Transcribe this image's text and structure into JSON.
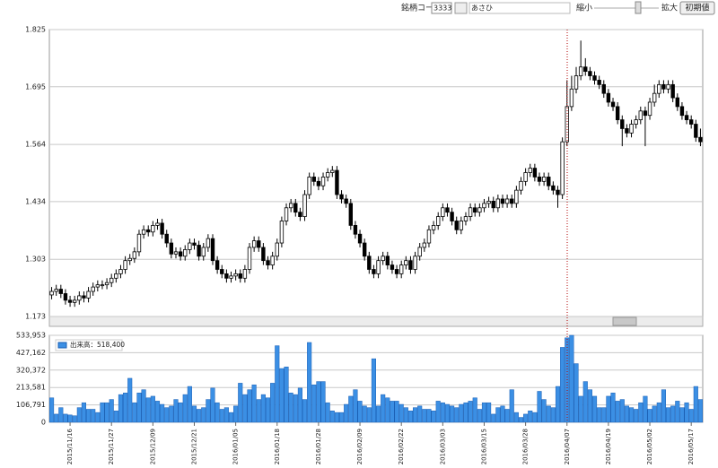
{
  "toolbar": {
    "code_label": "銘柄コード:",
    "code": "3333",
    "name": "あさひ",
    "zoom_out": "縮小",
    "zoom_in": "拡大",
    "reset": "初期値"
  },
  "chart_data": [
    {
      "type": "candlestick",
      "ylim": [
        1.173,
        1.825
      ],
      "yticks": [
        1.173,
        1.303,
        1.434,
        1.564,
        1.695,
        1.825
      ],
      "grid": true,
      "up_color": "#ffffff",
      "down_color": "#000000",
      "open": [
        1.222,
        1.23,
        1.235,
        1.225,
        1.21,
        1.205,
        1.21,
        1.22,
        1.215,
        1.23,
        1.24,
        1.245,
        1.245,
        1.25,
        1.26,
        1.27,
        1.28,
        1.3,
        1.305,
        1.32,
        1.36,
        1.37,
        1.365,
        1.38,
        1.385,
        1.36,
        1.34,
        1.315,
        1.32,
        1.31,
        1.325,
        1.34,
        1.335,
        1.31,
        1.33,
        1.35,
        1.3,
        1.28,
        1.27,
        1.26,
        1.265,
        1.27,
        1.26,
        1.28,
        1.33,
        1.345,
        1.33,
        1.3,
        1.29,
        1.31,
        1.34,
        1.39,
        1.42,
        1.43,
        1.41,
        1.4,
        1.45,
        1.49,
        1.48,
        1.47,
        1.49,
        1.5,
        1.505,
        1.45,
        1.44,
        1.43,
        1.38,
        1.36,
        1.34,
        1.31,
        1.28,
        1.27,
        1.3,
        1.31,
        1.29,
        1.28,
        1.27,
        1.29,
        1.3,
        1.28,
        1.31,
        1.33,
        1.34,
        1.37,
        1.38,
        1.4,
        1.42,
        1.41,
        1.39,
        1.37,
        1.39,
        1.4,
        1.42,
        1.41,
        1.42,
        1.43,
        1.435,
        1.42,
        1.44,
        1.43,
        1.44,
        1.43,
        1.46,
        1.48,
        1.5,
        1.51,
        1.49,
        1.48,
        1.49,
        1.47,
        1.46,
        1.45,
        1.57,
        1.65,
        1.69,
        1.72,
        1.74,
        1.73,
        1.72,
        1.71,
        1.7,
        1.68,
        1.66,
        1.65,
        1.62,
        1.6,
        1.59,
        1.61,
        1.62,
        1.64,
        1.63,
        1.66,
        1.68,
        1.7,
        1.69,
        1.7,
        1.67,
        1.65,
        1.63,
        1.62,
        1.61,
        1.58
      ],
      "high": [
        1.24,
        1.245,
        1.245,
        1.235,
        1.22,
        1.22,
        1.23,
        1.23,
        1.24,
        1.25,
        1.255,
        1.255,
        1.26,
        1.27,
        1.28,
        1.29,
        1.31,
        1.315,
        1.33,
        1.37,
        1.38,
        1.38,
        1.39,
        1.395,
        1.395,
        1.37,
        1.35,
        1.33,
        1.33,
        1.335,
        1.35,
        1.35,
        1.345,
        1.34,
        1.36,
        1.36,
        1.31,
        1.29,
        1.28,
        1.275,
        1.28,
        1.28,
        1.29,
        1.34,
        1.355,
        1.355,
        1.34,
        1.31,
        1.32,
        1.35,
        1.4,
        1.43,
        1.44,
        1.44,
        1.42,
        1.46,
        1.5,
        1.5,
        1.49,
        1.5,
        1.51,
        1.515,
        1.515,
        1.46,
        1.45,
        1.44,
        1.39,
        1.37,
        1.35,
        1.32,
        1.29,
        1.31,
        1.32,
        1.32,
        1.3,
        1.29,
        1.3,
        1.31,
        1.31,
        1.32,
        1.34,
        1.35,
        1.38,
        1.39,
        1.41,
        1.43,
        1.43,
        1.42,
        1.4,
        1.4,
        1.41,
        1.43,
        1.43,
        1.43,
        1.44,
        1.445,
        1.445,
        1.45,
        1.45,
        1.45,
        1.45,
        1.47,
        1.49,
        1.51,
        1.52,
        1.52,
        1.5,
        1.5,
        1.5,
        1.48,
        1.47,
        1.58,
        1.71,
        1.72,
        1.74,
        1.8,
        1.76,
        1.74,
        1.73,
        1.72,
        1.71,
        1.69,
        1.67,
        1.66,
        1.63,
        1.61,
        1.62,
        1.63,
        1.65,
        1.65,
        1.67,
        1.7,
        1.71,
        1.71,
        1.71,
        1.71,
        1.68,
        1.66,
        1.64,
        1.63,
        1.62,
        1.6
      ],
      "low": [
        1.212,
        1.22,
        1.215,
        1.2,
        1.195,
        1.195,
        1.2,
        1.205,
        1.205,
        1.22,
        1.23,
        1.235,
        1.235,
        1.24,
        1.25,
        1.26,
        1.27,
        1.29,
        1.295,
        1.31,
        1.35,
        1.355,
        1.355,
        1.37,
        1.35,
        1.33,
        1.305,
        1.305,
        1.3,
        1.3,
        1.315,
        1.325,
        1.3,
        1.3,
        1.32,
        1.29,
        1.27,
        1.26,
        1.25,
        1.25,
        1.255,
        1.25,
        1.25,
        1.27,
        1.32,
        1.32,
        1.29,
        1.28,
        1.28,
        1.3,
        1.33,
        1.38,
        1.41,
        1.4,
        1.39,
        1.39,
        1.44,
        1.47,
        1.46,
        1.46,
        1.48,
        1.49,
        1.44,
        1.43,
        1.42,
        1.37,
        1.35,
        1.33,
        1.3,
        1.27,
        1.26,
        1.26,
        1.29,
        1.28,
        1.27,
        1.26,
        1.26,
        1.28,
        1.27,
        1.27,
        1.3,
        1.32,
        1.33,
        1.36,
        1.37,
        1.39,
        1.4,
        1.38,
        1.36,
        1.36,
        1.38,
        1.39,
        1.4,
        1.4,
        1.41,
        1.42,
        1.41,
        1.41,
        1.42,
        1.42,
        1.42,
        1.42,
        1.45,
        1.47,
        1.49,
        1.48,
        1.47,
        1.47,
        1.46,
        1.45,
        1.42,
        1.44,
        1.56,
        1.64,
        1.68,
        1.71,
        1.72,
        1.71,
        1.7,
        1.69,
        1.67,
        1.65,
        1.64,
        1.61,
        1.56,
        1.58,
        1.58,
        1.6,
        1.61,
        1.56,
        1.62,
        1.65,
        1.67,
        1.68,
        1.68,
        1.66,
        1.64,
        1.62,
        1.61,
        1.6,
        1.57,
        1.56
      ],
      "close": [
        1.23,
        1.235,
        1.225,
        1.21,
        1.205,
        1.21,
        1.22,
        1.215,
        1.23,
        1.24,
        1.245,
        1.245,
        1.25,
        1.26,
        1.27,
        1.28,
        1.3,
        1.305,
        1.32,
        1.36,
        1.37,
        1.365,
        1.38,
        1.385,
        1.36,
        1.34,
        1.315,
        1.32,
        1.31,
        1.325,
        1.34,
        1.335,
        1.31,
        1.33,
        1.35,
        1.3,
        1.28,
        1.27,
        1.26,
        1.265,
        1.27,
        1.26,
        1.28,
        1.33,
        1.345,
        1.33,
        1.3,
        1.29,
        1.31,
        1.34,
        1.39,
        1.42,
        1.43,
        1.41,
        1.4,
        1.45,
        1.49,
        1.48,
        1.47,
        1.49,
        1.5,
        1.505,
        1.45,
        1.44,
        1.43,
        1.38,
        1.36,
        1.34,
        1.31,
        1.28,
        1.27,
        1.3,
        1.31,
        1.29,
        1.28,
        1.27,
        1.29,
        1.3,
        1.28,
        1.31,
        1.33,
        1.34,
        1.37,
        1.38,
        1.4,
        1.42,
        1.41,
        1.39,
        1.37,
        1.39,
        1.4,
        1.42,
        1.41,
        1.42,
        1.43,
        1.435,
        1.42,
        1.44,
        1.43,
        1.44,
        1.43,
        1.46,
        1.48,
        1.5,
        1.51,
        1.49,
        1.48,
        1.49,
        1.47,
        1.46,
        1.45,
        1.57,
        1.65,
        1.69,
        1.72,
        1.74,
        1.73,
        1.72,
        1.71,
        1.7,
        1.68,
        1.66,
        1.65,
        1.62,
        1.6,
        1.59,
        1.61,
        1.62,
        1.64,
        1.63,
        1.66,
        1.68,
        1.7,
        1.69,
        1.7,
        1.67,
        1.65,
        1.63,
        1.62,
        1.61,
        1.58,
        1.57
      ]
    },
    {
      "type": "bar",
      "legend": "出来高：518,400",
      "color": "#3b8fe4",
      "ylim": [
        0,
        533953
      ],
      "yticks": [
        0,
        {
          "value": 106791,
          "label": "106,791"
        },
        {
          "value": 213581,
          "label": "213,581"
        },
        {
          "value": 320372,
          "label": "320,372"
        },
        {
          "value": 427162,
          "label": "427,162"
        },
        {
          "value": 533953,
          "label": "533,953"
        }
      ],
      "categories": [
        null,
        null,
        null,
        null,
        "2015/11/16",
        null,
        null,
        null,
        null,
        null,
        null,
        null,
        null,
        "2015/11/27",
        null,
        null,
        null,
        null,
        null,
        null,
        null,
        null,
        "2015/12/09",
        null,
        null,
        null,
        null,
        null,
        null,
        null,
        null,
        "2015/12/21",
        null,
        null,
        null,
        null,
        null,
        null,
        null,
        null,
        "2016/01/05",
        null,
        null,
        null,
        null,
        null,
        null,
        null,
        null,
        "2016/01/18",
        null,
        null,
        null,
        null,
        null,
        null,
        null,
        null,
        "2016/01/28",
        null,
        null,
        null,
        null,
        null,
        null,
        null,
        null,
        "2016/02/09",
        null,
        null,
        null,
        null,
        null,
        null,
        null,
        null,
        "2016/02/22",
        null,
        null,
        null,
        null,
        null,
        null,
        null,
        null,
        "2016/03/03",
        null,
        null,
        null,
        null,
        null,
        null,
        null,
        null,
        "2016/03/15",
        null,
        null,
        null,
        null,
        null,
        null,
        null,
        null,
        "2016/03/28",
        null,
        null,
        null,
        null,
        null,
        null,
        null,
        null,
        "2016/04/07",
        null,
        null,
        null,
        null,
        null,
        null,
        null,
        null,
        "2016/04/19",
        null,
        null,
        null,
        null,
        null,
        null,
        null,
        null,
        "2016/05/02",
        null,
        null,
        null,
        null,
        null,
        null,
        null,
        null,
        "2016/05/17",
        null,
        null
      ],
      "values": [
        150000,
        50000,
        90000,
        50000,
        45000,
        40000,
        90000,
        120000,
        80000,
        80000,
        60000,
        120000,
        120000,
        140000,
        70000,
        170000,
        180000,
        270000,
        120000,
        180000,
        200000,
        150000,
        160000,
        130000,
        110000,
        90000,
        100000,
        140000,
        120000,
        170000,
        220000,
        100000,
        80000,
        90000,
        140000,
        210000,
        120000,
        80000,
        90000,
        60000,
        100000,
        240000,
        170000,
        200000,
        230000,
        140000,
        170000,
        150000,
        240000,
        470000,
        330000,
        340000,
        180000,
        170000,
        210000,
        140000,
        490000,
        230000,
        250000,
        250000,
        120000,
        70000,
        60000,
        60000,
        110000,
        160000,
        200000,
        130000,
        100000,
        90000,
        390000,
        100000,
        170000,
        150000,
        130000,
        130000,
        110000,
        90000,
        70000,
        90000,
        100000,
        80000,
        80000,
        70000,
        130000,
        120000,
        110000,
        100000,
        90000,
        110000,
        120000,
        130000,
        150000,
        80000,
        120000,
        120000,
        50000,
        90000,
        100000,
        80000,
        200000,
        60000,
        30000,
        50000,
        70000,
        60000,
        190000,
        140000,
        100000,
        90000,
        220000,
        460000,
        518400,
        533953,
        360000,
        160000,
        250000,
        200000,
        160000,
        90000,
        90000,
        160000,
        180000,
        130000,
        140000,
        100000,
        90000,
        80000,
        120000,
        160000,
        80000,
        100000,
        120000,
        200000,
        90000,
        100000,
        130000,
        90000,
        120000,
        80000,
        220000,
        140000
      ]
    }
  ]
}
